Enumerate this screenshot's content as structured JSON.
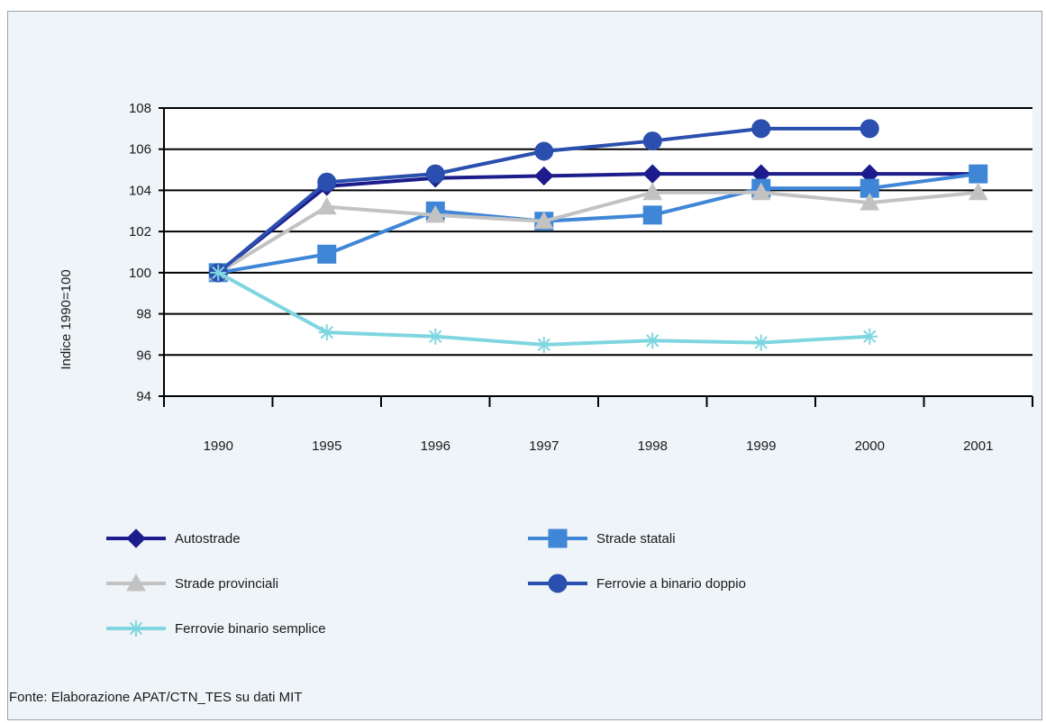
{
  "source_note": "Fonte: Elaborazione APAT/CTN_TES su dati MIT",
  "chart_data": {
    "type": "line",
    "ylabel": "Indice 1990=100",
    "xlabel": "",
    "categories": [
      "1990",
      "1995",
      "1996",
      "1997",
      "1998",
      "1999",
      "2000",
      "2001"
    ],
    "ylim": [
      94,
      108
    ],
    "yticks": [
      94,
      96,
      98,
      100,
      102,
      104,
      106,
      108
    ],
    "grid": "horizontal",
    "legend_position": "bottom",
    "series": [
      {
        "name": "Autostrade",
        "color": "#1c1c8c",
        "marker": "diamond",
        "values": [
          100,
          104.2,
          104.6,
          104.7,
          104.8,
          104.8,
          104.8,
          104.8
        ]
      },
      {
        "name": "Strade statali",
        "color": "#3f86d6",
        "marker": "square",
        "values": [
          100,
          100.9,
          103.0,
          102.5,
          102.8,
          104.1,
          104.1,
          104.8
        ]
      },
      {
        "name": "Strade provinciali",
        "color": "#c2c2c2",
        "marker": "triangle",
        "values": [
          100,
          103.2,
          102.8,
          102.5,
          103.9,
          103.9,
          103.4,
          103.9
        ]
      },
      {
        "name": "Ferrovie a binario doppio",
        "color": "#2b4fae",
        "marker": "circle",
        "values": [
          100,
          104.4,
          104.8,
          105.9,
          106.4,
          107.0,
          107.0,
          null
        ]
      },
      {
        "name": "Ferrovie binario semplice",
        "color": "#7fd6e0",
        "marker": "asterisk",
        "values": [
          100,
          97.1,
          96.9,
          96.5,
          96.7,
          96.6,
          96.9,
          null
        ]
      }
    ]
  }
}
